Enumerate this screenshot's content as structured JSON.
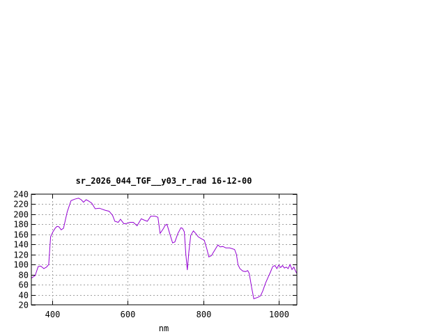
{
  "chart_data": {
    "type": "line",
    "title": "sr_2026_044_TGF__y03_r_rad 16-12-00",
    "xlabel": "nm",
    "ylabel": "",
    "xlim": [
      345,
      1048
    ],
    "ylim": [
      20,
      240
    ],
    "xticks": [
      400,
      600,
      800,
      1000
    ],
    "yticks": [
      20,
      40,
      60,
      80,
      100,
      120,
      140,
      160,
      180,
      200,
      220,
      240
    ],
    "grid": true,
    "line_color": "#9400d3",
    "series": [
      {
        "x": [
          345,
          355,
          363,
          370,
          378,
          385,
          391,
          396,
          402,
          408,
          413,
          418,
          424,
          430,
          440,
          450,
          460,
          470,
          477,
          483,
          490,
          497,
          505,
          514,
          525,
          540,
          551,
          560,
          566,
          575,
          581,
          590,
          600,
          606,
          615,
          625,
          636,
          645,
          652,
          661,
          673,
          680,
          686,
          695,
          699,
          704,
          712,
          719,
          725,
          733,
          741,
          745,
          750,
          754,
          758,
          762,
          767,
          774,
          780,
          787,
          796,
          803,
          810,
          815,
          822,
          830,
          839,
          845,
          852,
          860,
          870,
          883,
          888,
          892,
          897,
          905,
          912,
          918,
          922,
          928,
          934,
          945,
          952,
          958,
          965,
          972,
          978,
          984,
          990,
          995,
          1000,
          1005,
          1010,
          1015,
          1020,
          1025,
          1030,
          1035,
          1040,
          1044,
          1048
        ],
        "values": [
          73,
          78,
          96,
          97,
          92,
          95,
          100,
          155,
          165,
          172,
          176,
          175,
          169,
          172,
          205,
          227,
          230,
          232,
          229,
          224,
          229,
          226,
          222,
          211,
          212,
          208,
          206,
          198,
          186,
          184,
          190,
          181,
          182,
          184,
          184,
          177,
          191,
          188,
          186,
          196,
          196,
          194,
          162,
          172,
          178,
          180,
          160,
          143,
          145,
          162,
          173,
          172,
          165,
          120,
          89,
          125,
          158,
          167,
          162,
          155,
          151,
          148,
          130,
          115,
          118,
          128,
          139,
          135,
          136,
          133,
          133,
          130,
          120,
          100,
          92,
          87,
          86,
          88,
          82,
          55,
          32,
          35,
          38,
          48,
          63,
          75,
          85,
          96,
          98,
          92,
          99,
          94,
          98,
          93,
          95,
          92,
          100,
          90,
          95,
          88,
          82
        ]
      }
    ]
  }
}
